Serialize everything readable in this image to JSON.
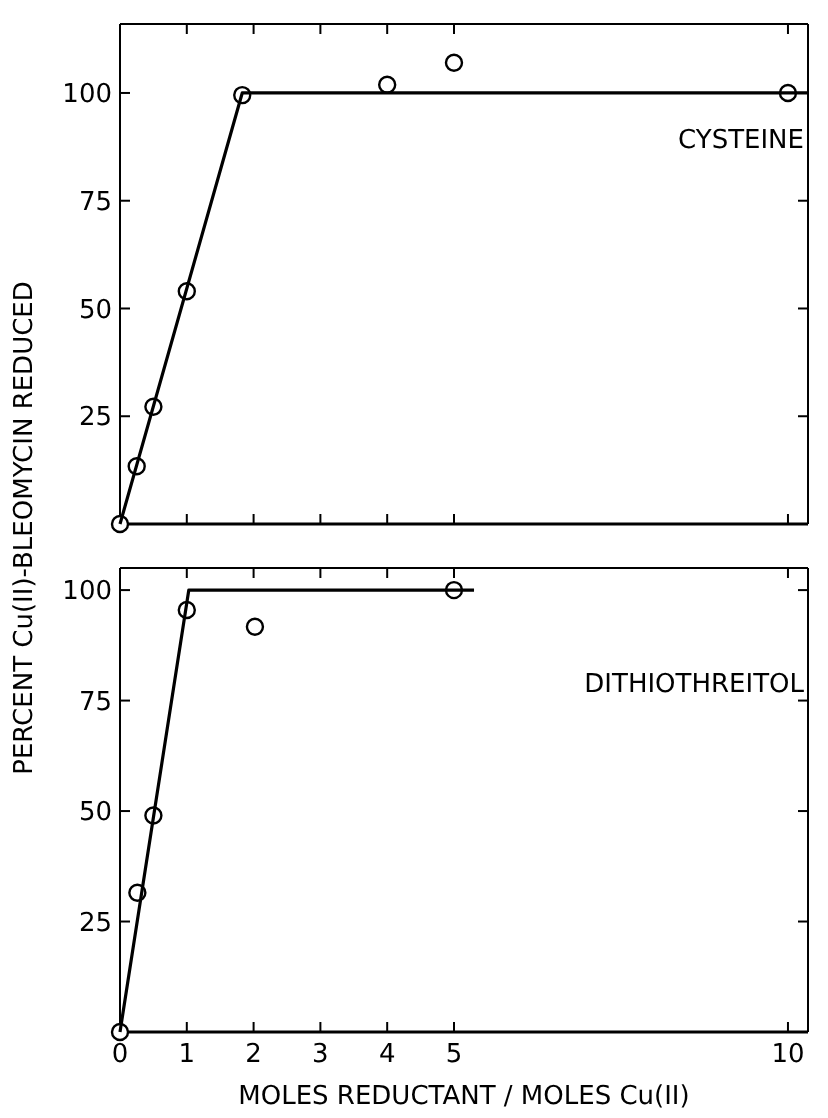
{
  "chart_data": [
    {
      "type": "scatter",
      "ylabel": "PERCENT Cu(II)-BLEOMYCIN REDUCED",
      "grid": false,
      "legend": "top right",
      "tick_labels": "y",
      "xlim": [
        0,
        10.3
      ],
      "xticks": [
        0,
        1,
        2,
        3,
        4,
        5,
        10
      ],
      "ylim": [
        0,
        116
      ],
      "yticks": [
        {
          "value": 0,
          "label": null
        },
        25,
        50,
        75,
        100
      ],
      "series": [
        {
          "name": "CYSTEINE",
          "marker": "circle",
          "color": "#000000",
          "x": [
            0,
            0.25,
            0.5,
            1,
            1.83,
            4,
            5,
            10
          ],
          "values": [
            0,
            13.4,
            27.2,
            54,
            99.5,
            101.9,
            107,
            100
          ]
        },
        {
          "type": "line",
          "marker": "none",
          "color": "#000000",
          "x": [
            0,
            1.83,
            10.3
          ],
          "values": [
            0,
            100,
            100
          ]
        }
      ]
    },
    {
      "type": "scatter",
      "xlabel": "MOLES REDUCTANT / MOLES Cu(II)",
      "grid": false,
      "legend": "top right",
      "xlim": [
        0,
        10.3
      ],
      "xticks": [
        0,
        1,
        2,
        3,
        4,
        5,
        10
      ],
      "ylim": [
        0,
        105
      ],
      "yticks": [
        {
          "value": 0,
          "label": null
        },
        25,
        50,
        75,
        100
      ],
      "series": [
        {
          "name": "DITHIOTHREITOL",
          "marker": "circle",
          "color": "#000000",
          "x": [
            0,
            0.26,
            0.5,
            1.0,
            2.02,
            5
          ],
          "values": [
            0,
            31.5,
            49,
            95.5,
            91.7,
            100
          ]
        },
        {
          "type": "line",
          "marker": "none",
          "color": "#000000",
          "x": [
            0,
            1.03,
            5.3
          ],
          "values": [
            0,
            100,
            100
          ]
        }
      ]
    }
  ]
}
